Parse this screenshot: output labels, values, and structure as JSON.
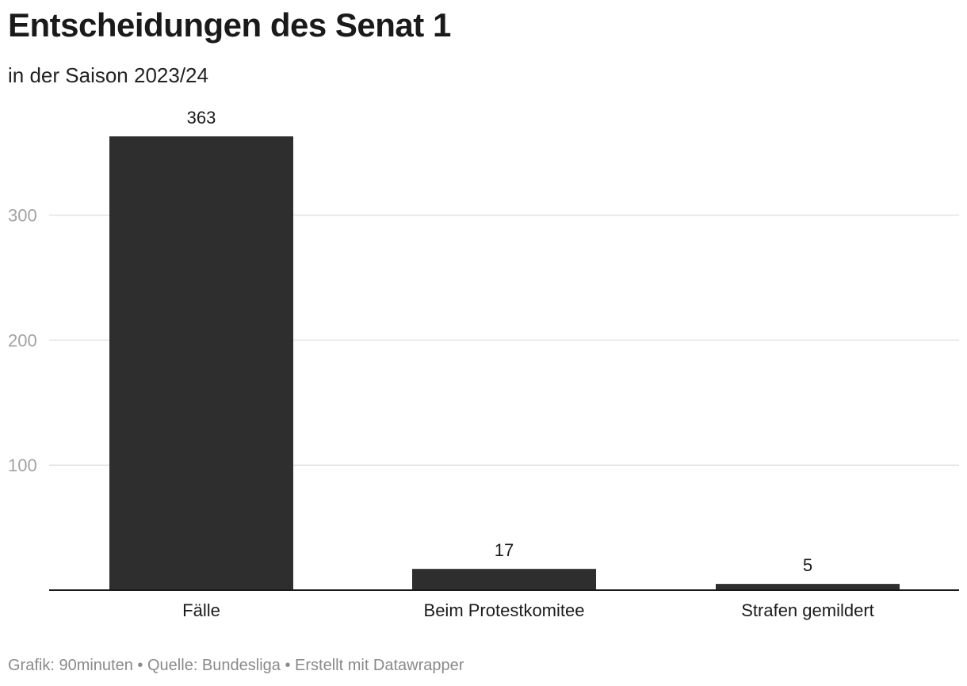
{
  "title": "Entscheidungen des Senat 1",
  "subtitle": "in der Saison 2023/24",
  "footer": {
    "grafik": "Grafik: 90minuten",
    "separator": "•",
    "quelle": "Quelle: Bundesliga",
    "erstellt": "Erstellt mit Datawrapper"
  },
  "colors": {
    "bar": "#2e2e2e",
    "grid": "#e3e3e3",
    "axis": "#1a1a1a",
    "tick_text": "#a3a3a3"
  },
  "chart_data": {
    "type": "bar",
    "title": "Entscheidungen des Senat 1",
    "subtitle": "in der Saison 2023/24",
    "categories": [
      "Fälle",
      "Beim Protestkomitee",
      "Strafen gemildert"
    ],
    "values": [
      363,
      17,
      5
    ],
    "data_labels": [
      "363",
      "17",
      "5"
    ],
    "yticks": [
      100,
      200,
      300
    ],
    "ylim": [
      0,
      363
    ],
    "grid": true,
    "xlabel": "",
    "ylabel": ""
  }
}
